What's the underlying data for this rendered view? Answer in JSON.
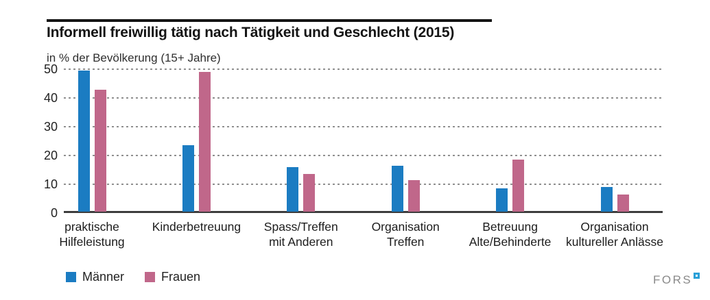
{
  "header": {
    "title": "Informell freiwillig tätig nach Tätigkeit und Geschlecht (2015)",
    "subtitle": "in % der Bevölkerung (15+ Jahre)"
  },
  "chart_data": {
    "type": "bar",
    "title": "Informell freiwillig tätig nach Tätigkeit und Geschlecht (2015)",
    "subtitle": "in % der Bevölkerung (15+ Jahre)",
    "ylabel": "in % der Bevölkerung (15+ Jahre)",
    "ylim": [
      0,
      50
    ],
    "yticks": [
      0,
      10,
      20,
      30,
      40,
      50
    ],
    "grid": "horizontal-dotted",
    "legend_position": "bottom-left",
    "categories": [
      "praktische Hilfeleistung",
      "Kinderbetreuung",
      "Spass/Treffen mit Anderen",
      "Organisation Treffen",
      "Betreuung Alte/Behinderte",
      "Organisation kultureller Anlässe"
    ],
    "categories_lines": [
      [
        "praktische",
        "Hilfeleistung"
      ],
      [
        "Kinderbetreuung"
      ],
      [
        "Spass/Treffen",
        "mit Anderen"
      ],
      [
        "Organisation",
        "Treffen"
      ],
      [
        "Betreuung",
        "Alte/Behinderte"
      ],
      [
        "Organisation",
        "kultureller Anlässe"
      ]
    ],
    "series": [
      {
        "name": "Männer",
        "color": "#1b7cc2",
        "values": [
          49,
          23,
          15.5,
          16,
          8,
          8.5
        ]
      },
      {
        "name": "Frauen",
        "color": "#c0678a",
        "values": [
          42.5,
          48.5,
          13,
          11,
          18,
          6
        ]
      }
    ]
  },
  "footer": {
    "logo_text": "FORS"
  },
  "colors": {
    "maenner": "#1b7cc2",
    "frauen": "#c0678a",
    "gridline": "#8f8f8f",
    "axis_line": "#3d3d3d",
    "title_rule": "#141414",
    "logo_gray": "#8a8a8a",
    "logo_blue": "#2aa0d8"
  }
}
